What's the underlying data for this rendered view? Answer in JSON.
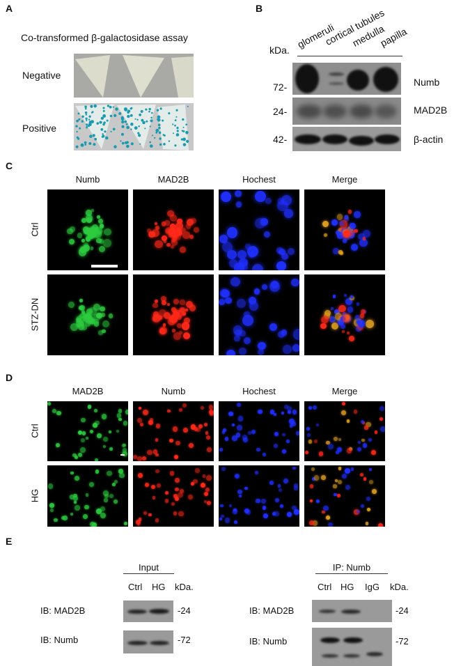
{
  "panel_a": {
    "label": "A",
    "title": "Co-transformed β-galactosidase assay",
    "rows": [
      "Negative",
      "Positive"
    ]
  },
  "panel_b": {
    "label": "B",
    "unit": "kDa.",
    "lanes": [
      "glomeruli",
      "cortical tubules",
      "medulla",
      "papilla"
    ],
    "blots": [
      {
        "marker": "72-",
        "protein": "Numb"
      },
      {
        "marker": "24-",
        "protein": "MAD2B"
      },
      {
        "marker": "42-",
        "protein": "β-actin"
      }
    ]
  },
  "panel_c": {
    "label": "C",
    "columns": [
      "Numb",
      "MAD2B",
      "Hochest",
      "Merge"
    ],
    "rows": [
      "Ctrl",
      "STZ-DN"
    ]
  },
  "panel_d": {
    "label": "D",
    "columns": [
      "MAD2B",
      "Numb",
      "Hochest",
      "Merge"
    ],
    "rows": [
      "Ctrl",
      "HG"
    ]
  },
  "panel_e": {
    "label": "E",
    "input": {
      "title": "Input",
      "lanes": [
        "Ctrl",
        "HG"
      ],
      "unit": "kDa.",
      "blots": [
        {
          "label": "IB: MAD2B",
          "marker": "-24"
        },
        {
          "label": "IB: Numb",
          "marker": "-72"
        }
      ]
    },
    "ip": {
      "title": "IP: Numb",
      "lanes": [
        "Ctrl",
        "HG",
        "IgG"
      ],
      "unit": "kDa.",
      "blots": [
        {
          "label": "IB: MAD2B",
          "marker": "-24"
        },
        {
          "label": "IB: Numb",
          "marker": "-72"
        }
      ]
    }
  },
  "colors": {
    "green": "#2ecc40",
    "red": "#ff2a1a",
    "blue": "#2030ff",
    "merge": "#e0a020",
    "xgal_blue": "#1a9ab0"
  }
}
